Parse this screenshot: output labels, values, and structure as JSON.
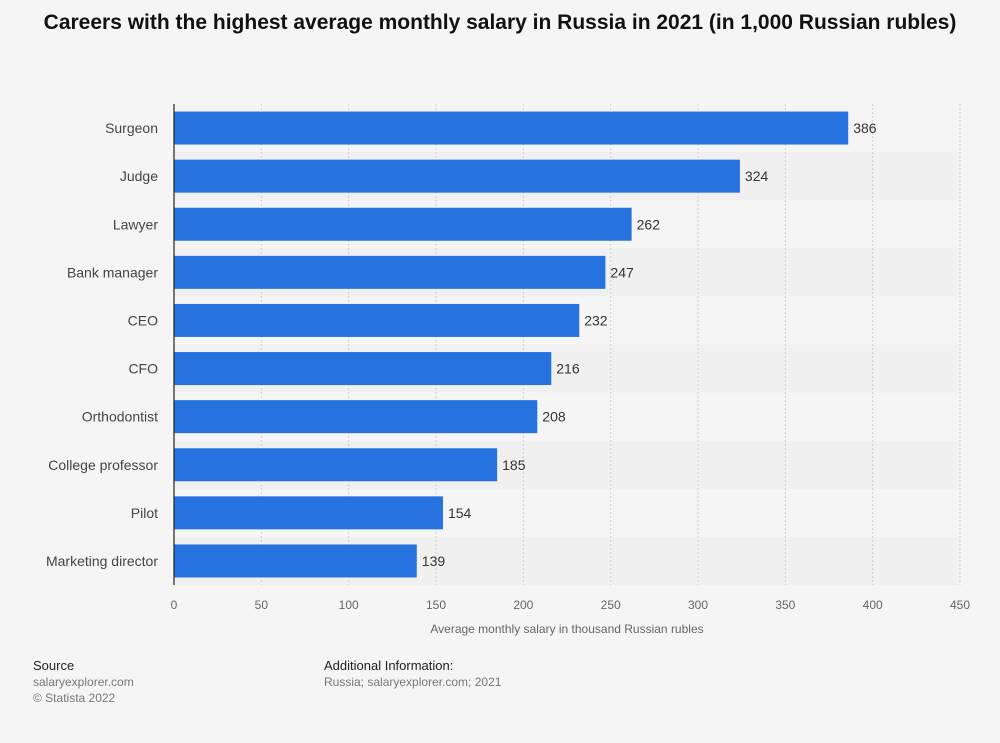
{
  "chart_data": {
    "type": "bar",
    "orientation": "horizontal",
    "title": "Careers with the highest average monthly salary in Russia in 2021 (in 1,000 Russian rubles)",
    "categories": [
      "Surgeon",
      "Judge",
      "Lawyer",
      "Bank manager",
      "CEO",
      "CFO",
      "Orthodontist",
      "College professor",
      "Pilot",
      "Marketing director"
    ],
    "values": [
      386,
      324,
      262,
      247,
      232,
      216,
      208,
      185,
      154,
      139
    ],
    "xlabel": "Average monthly salary in thousand Russian rubles",
    "ylabel": "",
    "xlim": [
      0,
      450
    ],
    "xticks": [
      "0",
      "50",
      "100",
      "150",
      "200",
      "250",
      "300",
      "350",
      "400",
      "450"
    ],
    "bar_color": "#2673e0",
    "grid": true
  },
  "footer": {
    "source_heading": "Source",
    "source_line1": "salaryexplorer.com",
    "source_line2": "© Statista 2022",
    "info_heading": "Additional Information:",
    "info_line": "Russia; salaryexplorer.com; 2021"
  }
}
